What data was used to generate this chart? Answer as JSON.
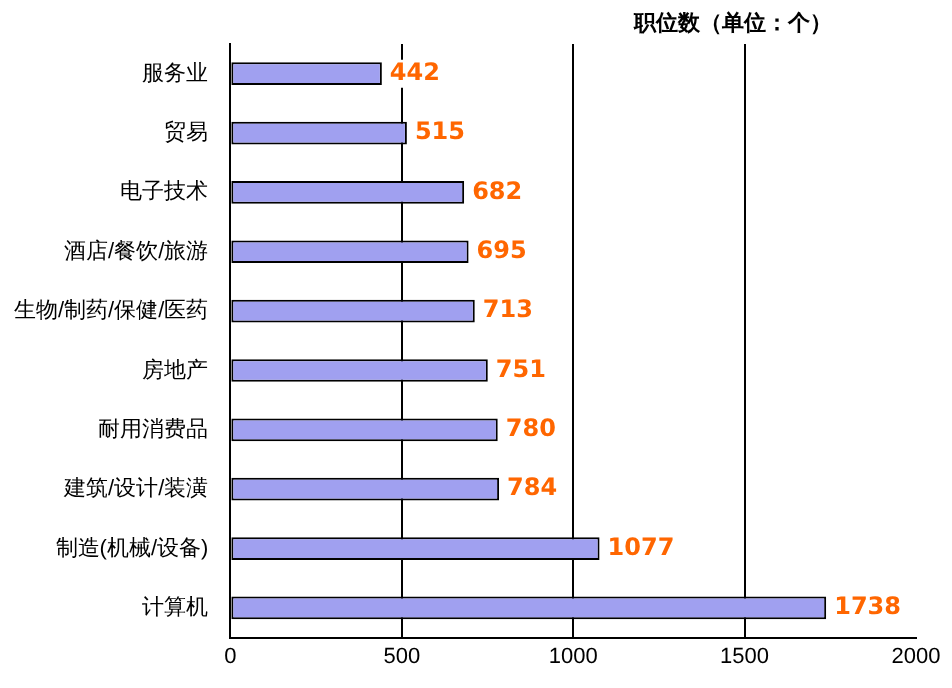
{
  "chart_data": {
    "type": "bar",
    "orientation": "horizontal",
    "title": "职位数（单位：个）",
    "categories": [
      "服务业",
      "贸易",
      "电子技术",
      "酒店/餐饮/旅游",
      "生物/制药/保健/医药",
      "房地产",
      "耐用消费品",
      "建筑/设计/装潢",
      "制造(机械/设备)",
      "计算机"
    ],
    "values": [
      442,
      515,
      682,
      695,
      713,
      751,
      780,
      784,
      1077,
      1738
    ],
    "color": "#a0a0f0",
    "xlim": [
      0,
      2000
    ],
    "xticks": [
      0,
      500,
      1000,
      1500,
      2000
    ],
    "grid": "x",
    "data_labels": true,
    "legend": false
  }
}
